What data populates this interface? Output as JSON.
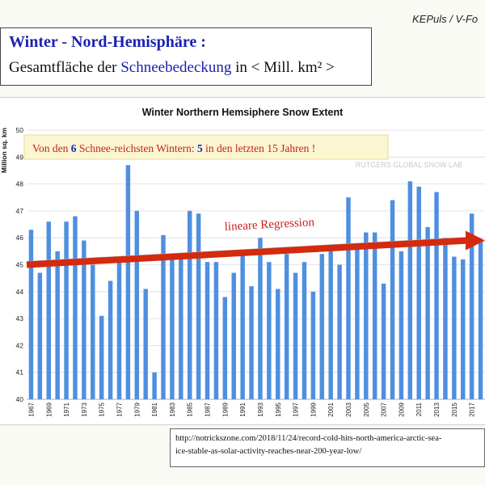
{
  "header": {
    "brand": "KEPuls / V-Fo",
    "title_line1": "Winter - Nord-Hemisphäre :",
    "title_line2_prefix": "Gesamtfläche der ",
    "title_line2_highlight": "Schneebedeckung",
    "title_line2_suffix": " in < Mill. km² >"
  },
  "callout": {
    "text_a": "Von den ",
    "num_a": "6",
    "text_b": " Schnee-reichsten Wintern: ",
    "num_b": "5",
    "text_c": " in den letzten 15 Jahren !"
  },
  "watermark": "RUTGERS GLOBAL SNOW LAB",
  "regression_label": "lineare Regression",
  "source": {
    "line1": "http://notrickszone.com/2018/11/24/record-cold-hits-north-america-arctic-sea-",
    "line2": "ice-stable-as-solar-activity-reaches-near-200-year-low/"
  },
  "colors": {
    "bar": "#4f8fe0",
    "regression": "#d42a0e",
    "title_blue": "#1a22b0",
    "callout_red": "#c81e1e",
    "callout_bg": "#fbf6d2"
  },
  "chart_data": {
    "type": "bar",
    "title": "Winter Northern Hemsiphere Snow Extent",
    "ylabel": "Million sq. km",
    "ylim": [
      40,
      50
    ],
    "yticks": [
      40,
      41,
      42,
      43,
      44,
      45,
      46,
      47,
      48,
      49,
      50
    ],
    "grid": true,
    "categories": [
      1967,
      1968,
      1969,
      1970,
      1971,
      1972,
      1973,
      1974,
      1975,
      1976,
      1977,
      1978,
      1979,
      1980,
      1981,
      1982,
      1983,
      1984,
      1985,
      1986,
      1987,
      1988,
      1989,
      1990,
      1991,
      1992,
      1993,
      1994,
      1995,
      1996,
      1997,
      1998,
      1999,
      2000,
      2001,
      2002,
      2003,
      2004,
      2005,
      2006,
      2007,
      2008,
      2009,
      2010,
      2011,
      2012,
      2013,
      2014,
      2015,
      2016,
      2017,
      2018
    ],
    "tick_labels": [
      "1967",
      "1969",
      "1971",
      "1973",
      "1975",
      "1977",
      "1979",
      "1981",
      "1983",
      "1985",
      "1987",
      "1989",
      "1991",
      "1993",
      "1995",
      "1997",
      "1999",
      "2001",
      "2003",
      "2005",
      "2007",
      "2009",
      "2011",
      "2013",
      "2015",
      "2017"
    ],
    "values": [
      46.3,
      44.7,
      46.6,
      45.5,
      46.6,
      46.8,
      45.9,
      45.0,
      43.1,
      44.4,
      45.1,
      48.7,
      47.0,
      44.1,
      41.0,
      46.1,
      45.4,
      45.4,
      47.0,
      46.9,
      45.1,
      45.1,
      43.8,
      44.7,
      45.4,
      44.2,
      46.0,
      45.1,
      44.1,
      45.4,
      44.7,
      45.1,
      44.0,
      45.4,
      45.6,
      45.0,
      47.5,
      45.7,
      46.2,
      46.2,
      44.3,
      47.4,
      45.5,
      48.1,
      47.9,
      46.4,
      47.7,
      46.0,
      45.3,
      45.2,
      46.9,
      45.9
    ],
    "regression": {
      "start": [
        1967,
        45.0
      ],
      "end": [
        2018,
        45.9
      ]
    }
  }
}
